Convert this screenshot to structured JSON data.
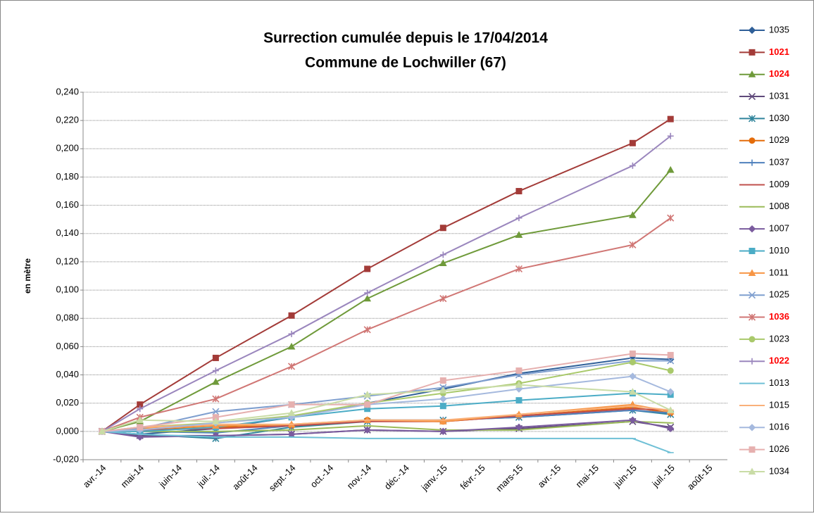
{
  "chart_data": {
    "type": "line",
    "title": "Surrection cumulée depuis le 17/04/2014",
    "subtitle": "Commune de Lochwiller (67)",
    "y_label": "en mètre",
    "categories": [
      "avr.-14",
      "mai-14",
      "juin-14",
      "juil.-14",
      "août-14",
      "sept.-14",
      "oct.-14",
      "nov.-14",
      "déc.-14",
      "janv.-15",
      "févr.-15",
      "mars-15",
      "avr.-15",
      "mai-15",
      "juin-15",
      "juil.-15",
      "août-15"
    ],
    "x": [
      "avr.-14",
      "mai-14",
      "juil.-14",
      "sept.-14",
      "nov.-14",
      "janv.-15",
      "mars-15",
      "juin-15",
      "juil.-15"
    ],
    "ylim": [
      -0.02,
      0.24
    ],
    "yticks": [
      {
        "value": -0.02,
        "label": "-0,020"
      },
      {
        "value": 0,
        "label": "0,000"
      },
      {
        "value": 0.02,
        "label": "0,020"
      },
      {
        "value": 0.04,
        "label": "0,040"
      },
      {
        "value": 0.06,
        "label": "0,060"
      },
      {
        "value": 0.08,
        "label": "0,080"
      },
      {
        "value": 0.1,
        "label": "0,100"
      },
      {
        "value": 0.12,
        "label": "0,120"
      },
      {
        "value": 0.14,
        "label": "0,140"
      },
      {
        "value": 0.16,
        "label": "0,160"
      },
      {
        "value": 0.18,
        "label": "0,180"
      },
      {
        "value": 0.2,
        "label": "0,200"
      },
      {
        "value": 0.22,
        "label": "0,220"
      },
      {
        "value": 0.24,
        "label": "0,240"
      }
    ],
    "grid": true,
    "legend": "right",
    "series": [
      {
        "name": "1035",
        "color": "#2f5f98",
        "marker": "diamond",
        "values": [
          0,
          -0.002,
          0.002,
          0.01,
          0.02,
          0.03,
          0.041,
          0.052,
          0.051
        ]
      },
      {
        "name": "1021",
        "color": "#a33b38",
        "marker": "square",
        "name_color": "#ff0000",
        "values": [
          0,
          0.019,
          0.052,
          0.082,
          0.115,
          0.144,
          0.17,
          0.204,
          0.221
        ]
      },
      {
        "name": "1024",
        "color": "#6f9a3a",
        "marker": "triangle",
        "name_color": "#ff0000",
        "values": [
          0,
          0.007,
          0.035,
          0.06,
          0.094,
          0.119,
          0.139,
          0.153,
          0.185
        ]
      },
      {
        "name": "1031",
        "color": "#5f497a",
        "marker": "x",
        "values": [
          0,
          -0.003,
          -0.003,
          -0.002,
          0.001,
          0,
          0.002,
          0.007,
          0.003
        ]
      },
      {
        "name": "1030",
        "color": "#31859c",
        "marker": "asterisk",
        "values": [
          0,
          -0.002,
          -0.005,
          0.003,
          0.007,
          0.008,
          0.01,
          0.015,
          0.012
        ]
      },
      {
        "name": "1029",
        "color": "#e46c0a",
        "marker": "circle",
        "values": [
          0,
          0.001,
          0.003,
          0.004,
          0.008,
          0.007,
          0.011,
          0.017,
          0.013
        ]
      },
      {
        "name": "1037",
        "color": "#4f81bd",
        "marker": "plus",
        "values": [
          0,
          0,
          -0.001,
          0.004,
          0.008,
          0.008,
          0.01,
          0.015,
          0.013
        ]
      },
      {
        "name": "1009",
        "color": "#c0504d",
        "marker": "dash",
        "values": [
          0,
          0.001,
          0.002,
          0.004,
          0.007,
          0.007,
          0.011,
          0.016,
          0.015
        ]
      },
      {
        "name": "1008",
        "color": "#9bbb59",
        "marker": "dash",
        "values": [
          0,
          0,
          0,
          0.001,
          0.004,
          0.001,
          0.001,
          0.007,
          0.006
        ]
      },
      {
        "name": "1007",
        "color": "#7a5b9e",
        "marker": "diamond",
        "values": [
          0,
          -0.004,
          -0.003,
          -0.002,
          0.001,
          0,
          0.003,
          0.008,
          0.002
        ]
      },
      {
        "name": "1010",
        "color": "#4bacc6",
        "marker": "square",
        "values": [
          0,
          0,
          0.003,
          0.01,
          0.016,
          0.018,
          0.022,
          0.027,
          0.026
        ]
      },
      {
        "name": "1011",
        "color": "#f79646",
        "marker": "triangle",
        "values": [
          0,
          0.002,
          0.004,
          0.005,
          0.008,
          0.007,
          0.012,
          0.019,
          0.014
        ]
      },
      {
        "name": "1025",
        "color": "#7f9fcf",
        "marker": "x",
        "values": [
          0,
          0.002,
          0.014,
          0.019,
          0.025,
          0.031,
          0.04,
          0.05,
          0.05
        ]
      },
      {
        "name": "1036",
        "color": "#d07674",
        "marker": "asterisk",
        "name_color": "#ff0000",
        "values": [
          0,
          0.01,
          0.023,
          0.046,
          0.072,
          0.094,
          0.115,
          0.132,
          0.151
        ]
      },
      {
        "name": "1023",
        "color": "#a9c96b",
        "marker": "circle",
        "values": [
          0,
          0.003,
          0.006,
          0.011,
          0.02,
          0.027,
          0.034,
          0.049,
          0.043
        ]
      },
      {
        "name": "1022",
        "color": "#9a86bd",
        "marker": "plus",
        "name_color": "#ff0000",
        "values": [
          0,
          0.016,
          0.043,
          0.069,
          0.098,
          0.125,
          0.151,
          0.188,
          0.209
        ]
      },
      {
        "name": "1013",
        "color": "#6fc0d6",
        "marker": "dash",
        "values": [
          0,
          -0.002,
          -0.004,
          -0.004,
          -0.005,
          -0.005,
          -0.005,
          -0.005,
          -0.015
        ]
      },
      {
        "name": "1015",
        "color": "#f9b07a",
        "marker": "dash",
        "values": [
          0,
          0.003,
          0.005,
          0.005,
          0.008,
          0.008,
          0.012,
          0.018,
          0.015
        ]
      },
      {
        "name": "1016",
        "color": "#a5b9de",
        "marker": "diamond",
        "values": [
          0,
          0.001,
          0.006,
          0.01,
          0.019,
          0.023,
          0.03,
          0.039,
          0.028
        ]
      },
      {
        "name": "1026",
        "color": "#e6b0af",
        "marker": "square",
        "values": [
          0,
          0.003,
          0.01,
          0.019,
          0.019,
          0.036,
          0.043,
          0.055,
          0.054
        ]
      },
      {
        "name": "1034",
        "color": "#c9dca6",
        "marker": "triangle",
        "values": [
          0,
          0.008,
          0.007,
          0.013,
          0.026,
          0.029,
          0.033,
          0.028,
          0.015
        ]
      }
    ]
  }
}
